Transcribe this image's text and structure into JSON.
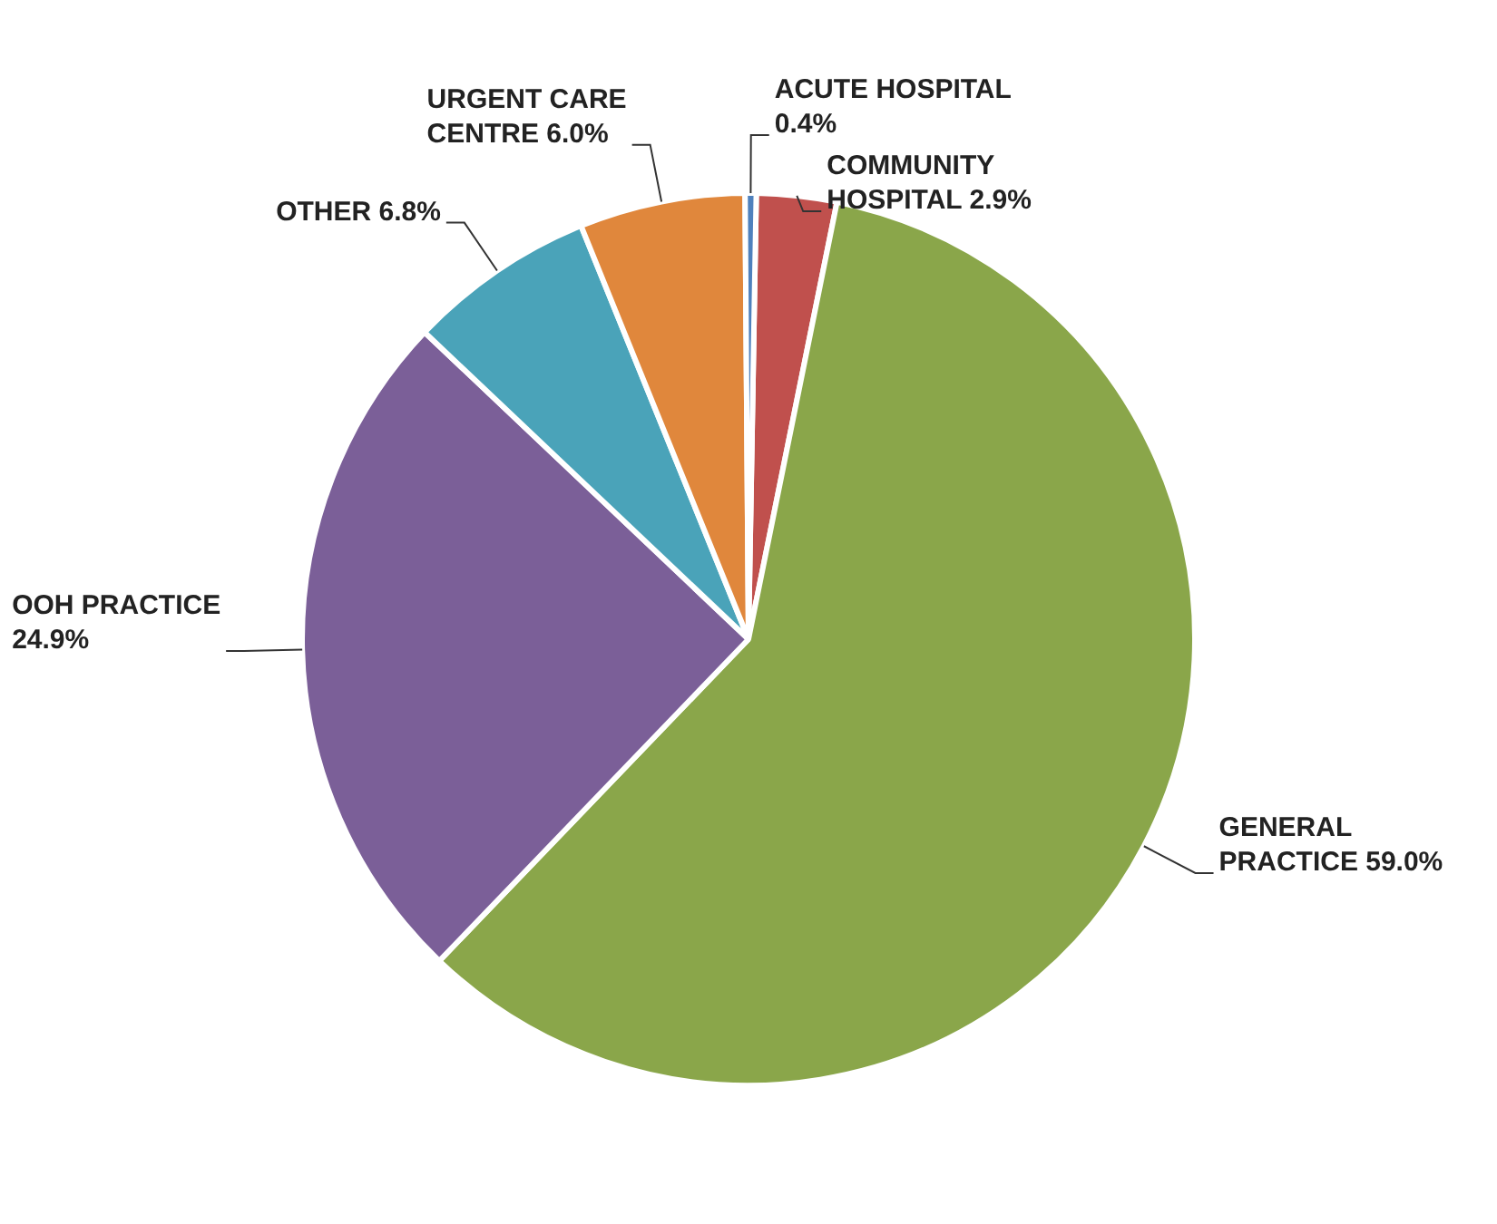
{
  "chart_data": {
    "type": "pie",
    "categories": [
      "COMMUNITY HOSPITAL",
      "GENERAL PRACTICE",
      "OOH PRACTICE",
      "OTHER",
      "URGENT CARE CENTRE",
      "ACUTE HOSPITAL"
    ],
    "values": [
      2.9,
      59.0,
      24.9,
      6.8,
      6.0,
      0.4
    ],
    "value_labels": [
      "2.9%",
      "59.0%",
      "24.9%",
      "6.8%",
      "6.0%",
      "0.4%"
    ],
    "colors": [
      "#c0504d",
      "#8aa64a",
      "#7b5f98",
      "#4aa3b9",
      "#e0873c",
      "#4f81bd"
    ],
    "legend": false
  }
}
